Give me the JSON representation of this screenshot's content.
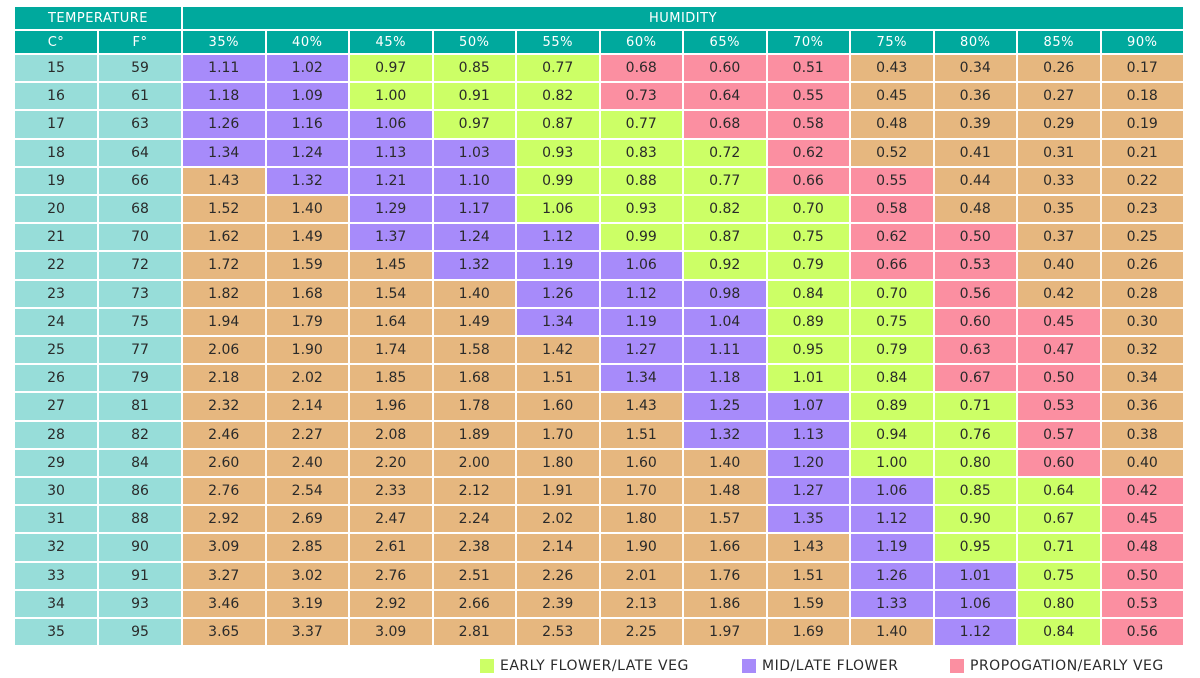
{
  "chart_data": {
    "type": "table",
    "header": {
      "temperature": "TEMPERATURE",
      "humidity": "HUMIDITY",
      "celsius": "C°",
      "fahrenheit": "F°"
    },
    "humidity_columns": [
      "35%",
      "40%",
      "45%",
      "50%",
      "55%",
      "60%",
      "65%",
      "70%",
      "75%",
      "80%",
      "85%",
      "90%"
    ],
    "rows": [
      {
        "c": "15",
        "f": "59",
        "values": [
          "1.11",
          "1.02",
          "0.97",
          "0.85",
          "0.77",
          "0.68",
          "0.60",
          "0.51",
          "0.43",
          "0.34",
          "0.26",
          "0.17"
        ],
        "zones": [
          "mid",
          "mid",
          "early",
          "early",
          "early",
          "prop",
          "prop",
          "prop",
          "out",
          "out",
          "out",
          "out"
        ]
      },
      {
        "c": "16",
        "f": "61",
        "values": [
          "1.18",
          "1.09",
          "1.00",
          "0.91",
          "0.82",
          "0.73",
          "0.64",
          "0.55",
          "0.45",
          "0.36",
          "0.27",
          "0.18"
        ],
        "zones": [
          "mid",
          "mid",
          "early",
          "early",
          "early",
          "prop",
          "prop",
          "prop",
          "out",
          "out",
          "out",
          "out"
        ]
      },
      {
        "c": "17",
        "f": "63",
        "values": [
          "1.26",
          "1.16",
          "1.06",
          "0.97",
          "0.87",
          "0.77",
          "0.68",
          "0.58",
          "0.48",
          "0.39",
          "0.29",
          "0.19"
        ],
        "zones": [
          "mid",
          "mid",
          "mid",
          "early",
          "early",
          "early",
          "prop",
          "prop",
          "out",
          "out",
          "out",
          "out"
        ]
      },
      {
        "c": "18",
        "f": "64",
        "values": [
          "1.34",
          "1.24",
          "1.13",
          "1.03",
          "0.93",
          "0.83",
          "0.72",
          "0.62",
          "0.52",
          "0.41",
          "0.31",
          "0.21"
        ],
        "zones": [
          "mid",
          "mid",
          "mid",
          "mid",
          "early",
          "early",
          "early",
          "prop",
          "out",
          "out",
          "out",
          "out"
        ]
      },
      {
        "c": "19",
        "f": "66",
        "values": [
          "1.43",
          "1.32",
          "1.21",
          "1.10",
          "0.99",
          "0.88",
          "0.77",
          "0.66",
          "0.55",
          "0.44",
          "0.33",
          "0.22"
        ],
        "zones": [
          "out",
          "mid",
          "mid",
          "mid",
          "early",
          "early",
          "early",
          "prop",
          "prop",
          "out",
          "out",
          "out"
        ]
      },
      {
        "c": "20",
        "f": "68",
        "values": [
          "1.52",
          "1.40",
          "1.29",
          "1.17",
          "1.06",
          "0.93",
          "0.82",
          "0.70",
          "0.58",
          "0.48",
          "0.35",
          "0.23"
        ],
        "zones": [
          "out",
          "out",
          "mid",
          "mid",
          "early",
          "early",
          "early",
          "early",
          "prop",
          "out",
          "out",
          "out"
        ]
      },
      {
        "c": "21",
        "f": "70",
        "values": [
          "1.62",
          "1.49",
          "1.37",
          "1.24",
          "1.12",
          "0.99",
          "0.87",
          "0.75",
          "0.62",
          "0.50",
          "0.37",
          "0.25"
        ],
        "zones": [
          "out",
          "out",
          "mid",
          "mid",
          "mid",
          "early",
          "early",
          "early",
          "prop",
          "prop",
          "out",
          "out"
        ]
      },
      {
        "c": "22",
        "f": "72",
        "values": [
          "1.72",
          "1.59",
          "1.45",
          "1.32",
          "1.19",
          "1.06",
          "0.92",
          "0.79",
          "0.66",
          "0.53",
          "0.40",
          "0.26"
        ],
        "zones": [
          "out",
          "out",
          "out",
          "mid",
          "mid",
          "mid",
          "early",
          "early",
          "prop",
          "prop",
          "out",
          "out"
        ]
      },
      {
        "c": "23",
        "f": "73",
        "values": [
          "1.82",
          "1.68",
          "1.54",
          "1.40",
          "1.26",
          "1.12",
          "0.98",
          "0.84",
          "0.70",
          "0.56",
          "0.42",
          "0.28"
        ],
        "zones": [
          "out",
          "out",
          "out",
          "out",
          "mid",
          "mid",
          "mid",
          "early",
          "early",
          "prop",
          "out",
          "out"
        ]
      },
      {
        "c": "24",
        "f": "75",
        "values": [
          "1.94",
          "1.79",
          "1.64",
          "1.49",
          "1.34",
          "1.19",
          "1.04",
          "0.89",
          "0.75",
          "0.60",
          "0.45",
          "0.30"
        ],
        "zones": [
          "out",
          "out",
          "out",
          "out",
          "mid",
          "mid",
          "mid",
          "early",
          "early",
          "prop",
          "prop",
          "out"
        ]
      },
      {
        "c": "25",
        "f": "77",
        "values": [
          "2.06",
          "1.90",
          "1.74",
          "1.58",
          "1.42",
          "1.27",
          "1.11",
          "0.95",
          "0.79",
          "0.63",
          "0.47",
          "0.32"
        ],
        "zones": [
          "out",
          "out",
          "out",
          "out",
          "out",
          "mid",
          "mid",
          "early",
          "early",
          "prop",
          "prop",
          "out"
        ]
      },
      {
        "c": "26",
        "f": "79",
        "values": [
          "2.18",
          "2.02",
          "1.85",
          "1.68",
          "1.51",
          "1.34",
          "1.18",
          "1.01",
          "0.84",
          "0.67",
          "0.50",
          "0.34"
        ],
        "zones": [
          "out",
          "out",
          "out",
          "out",
          "out",
          "mid",
          "mid",
          "early",
          "early",
          "prop",
          "prop",
          "out"
        ]
      },
      {
        "c": "27",
        "f": "81",
        "values": [
          "2.32",
          "2.14",
          "1.96",
          "1.78",
          "1.60",
          "1.43",
          "1.25",
          "1.07",
          "0.89",
          "0.71",
          "0.53",
          "0.36"
        ],
        "zones": [
          "out",
          "out",
          "out",
          "out",
          "out",
          "out",
          "mid",
          "mid",
          "early",
          "early",
          "prop",
          "out"
        ]
      },
      {
        "c": "28",
        "f": "82",
        "values": [
          "2.46",
          "2.27",
          "2.08",
          "1.89",
          "1.70",
          "1.51",
          "1.32",
          "1.13",
          "0.94",
          "0.76",
          "0.57",
          "0.38"
        ],
        "zones": [
          "out",
          "out",
          "out",
          "out",
          "out",
          "out",
          "mid",
          "mid",
          "early",
          "early",
          "prop",
          "out"
        ]
      },
      {
        "c": "29",
        "f": "84",
        "values": [
          "2.60",
          "2.40",
          "2.20",
          "2.00",
          "1.80",
          "1.60",
          "1.40",
          "1.20",
          "1.00",
          "0.80",
          "0.60",
          "0.40"
        ],
        "zones": [
          "out",
          "out",
          "out",
          "out",
          "out",
          "out",
          "out",
          "mid",
          "early",
          "early",
          "prop",
          "out"
        ]
      },
      {
        "c": "30",
        "f": "86",
        "values": [
          "2.76",
          "2.54",
          "2.33",
          "2.12",
          "1.91",
          "1.70",
          "1.48",
          "1.27",
          "1.06",
          "0.85",
          "0.64",
          "0.42"
        ],
        "zones": [
          "out",
          "out",
          "out",
          "out",
          "out",
          "out",
          "out",
          "mid",
          "mid",
          "early",
          "early",
          "prop"
        ]
      },
      {
        "c": "31",
        "f": "88",
        "values": [
          "2.92",
          "2.69",
          "2.47",
          "2.24",
          "2.02",
          "1.80",
          "1.57",
          "1.35",
          "1.12",
          "0.90",
          "0.67",
          "0.45"
        ],
        "zones": [
          "out",
          "out",
          "out",
          "out",
          "out",
          "out",
          "out",
          "mid",
          "mid",
          "early",
          "early",
          "prop"
        ]
      },
      {
        "c": "32",
        "f": "90",
        "values": [
          "3.09",
          "2.85",
          "2.61",
          "2.38",
          "2.14",
          "1.90",
          "1.66",
          "1.43",
          "1.19",
          "0.95",
          "0.71",
          "0.48"
        ],
        "zones": [
          "out",
          "out",
          "out",
          "out",
          "out",
          "out",
          "out",
          "out",
          "mid",
          "early",
          "early",
          "prop"
        ]
      },
      {
        "c": "33",
        "f": "91",
        "values": [
          "3.27",
          "3.02",
          "2.76",
          "2.51",
          "2.26",
          "2.01",
          "1.76",
          "1.51",
          "1.26",
          "1.01",
          "0.75",
          "0.50"
        ],
        "zones": [
          "out",
          "out",
          "out",
          "out",
          "out",
          "out",
          "out",
          "out",
          "mid",
          "mid",
          "early",
          "prop"
        ]
      },
      {
        "c": "34",
        "f": "93",
        "values": [
          "3.46",
          "3.19",
          "2.92",
          "2.66",
          "2.39",
          "2.13",
          "1.86",
          "1.59",
          "1.33",
          "1.06",
          "0.80",
          "0.53"
        ],
        "zones": [
          "out",
          "out",
          "out",
          "out",
          "out",
          "out",
          "out",
          "out",
          "mid",
          "mid",
          "early",
          "prop"
        ]
      },
      {
        "c": "35",
        "f": "95",
        "values": [
          "3.65",
          "3.37",
          "3.09",
          "2.81",
          "2.53",
          "2.25",
          "1.97",
          "1.69",
          "1.40",
          "1.12",
          "0.84",
          "0.56"
        ],
        "zones": [
          "out",
          "out",
          "out",
          "out",
          "out",
          "out",
          "out",
          "out",
          "out",
          "mid",
          "early",
          "prop"
        ]
      }
    ],
    "legend": [
      {
        "key": "early",
        "label": "EARLY FLOWER/LATE VEG",
        "color": "#ccff66"
      },
      {
        "key": "mid",
        "label": "MID/LATE FLOWER",
        "color": "#a78bfa"
      },
      {
        "key": "prop",
        "label": "PROPOGATION/EARLY VEG",
        "color": "#fb8fa1"
      }
    ],
    "colors": {
      "out": "#e6b77f",
      "header": "#00a99d",
      "temperature_cells": "#97ddd9"
    }
  }
}
